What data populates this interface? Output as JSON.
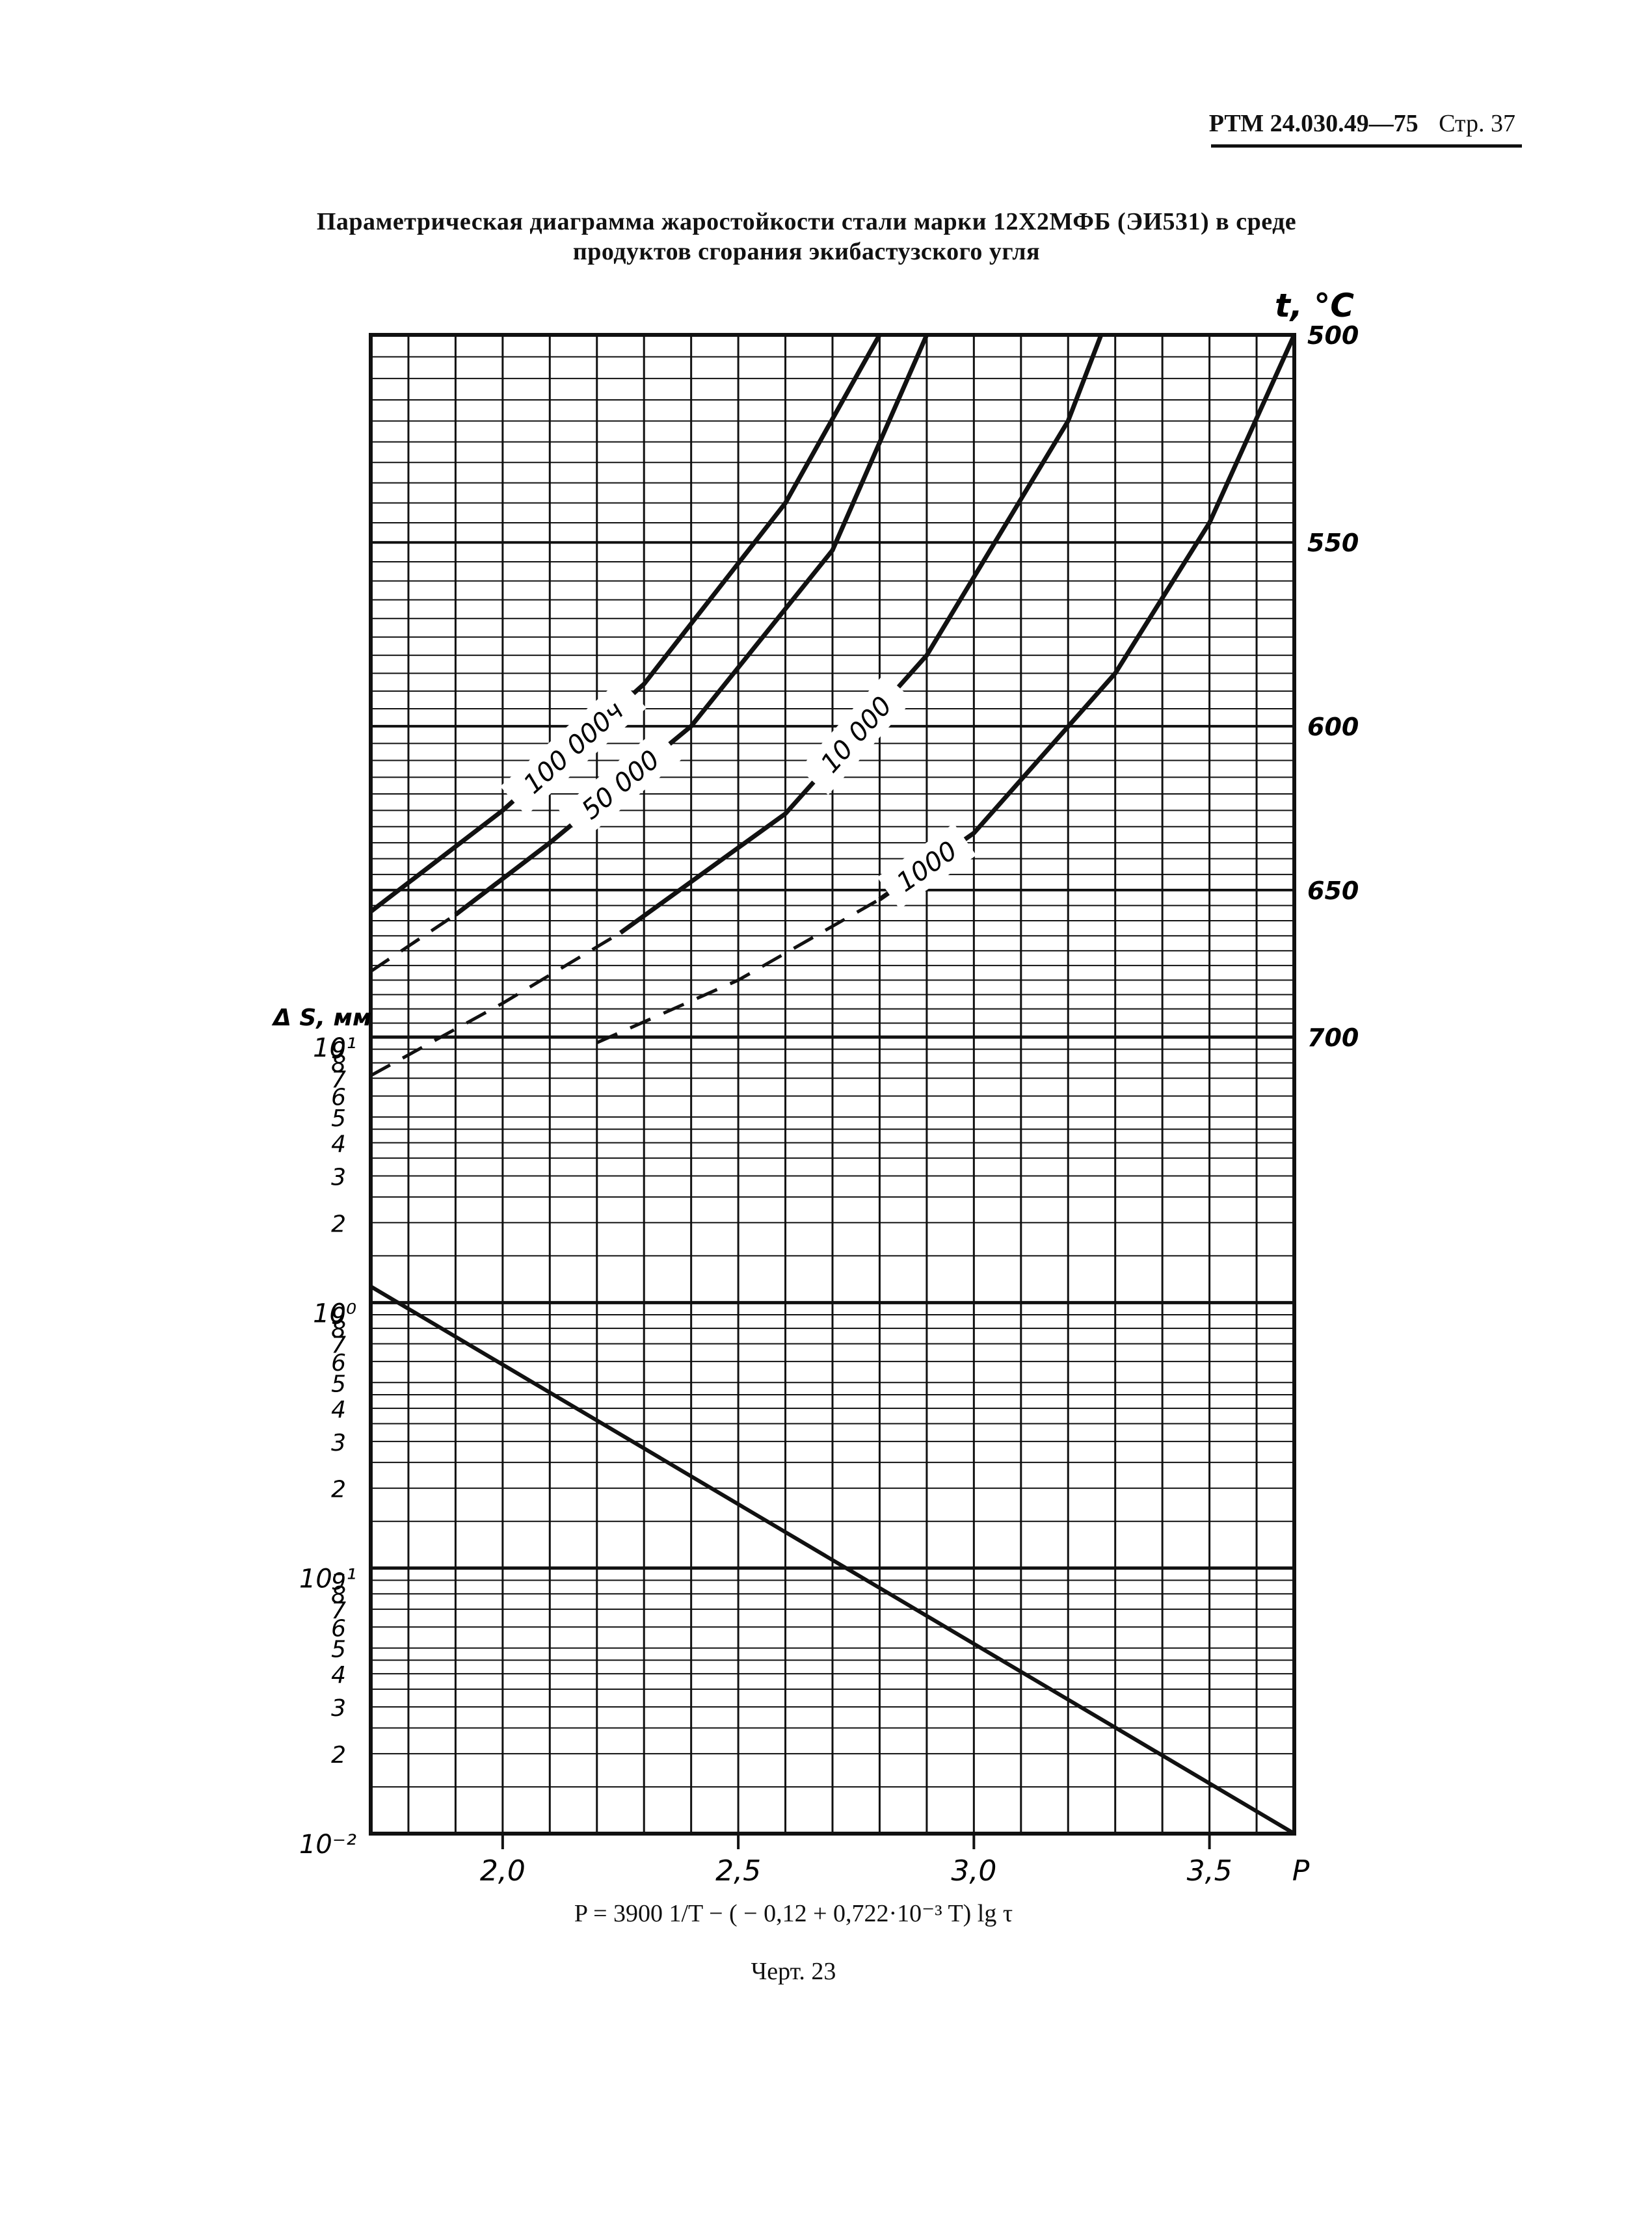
{
  "page_header": {
    "code": "РТМ 24.030.49—75",
    "page": "Стр. 37"
  },
  "title": "Параметрическая диаграмма жаростойкости стали марки 12Х2МФБ (ЭИ531) в среде продуктов сгорания экибастузского угля",
  "formula": "P = 3900 1/T − ( − 0,12 + 0,722·10⁻³ T) lg τ",
  "caption": "Черт. 23",
  "chart_data": {
    "type": "line",
    "x_axis": {
      "label": "P",
      "range": [
        1.72,
        3.68
      ],
      "ticks": [
        2.0,
        2.5,
        3.0,
        3.5
      ],
      "tick_labels": [
        "2,0",
        "2,5",
        "3,0",
        "3,5"
      ]
    },
    "right_axis": {
      "label": "t, °C",
      "ticks": [
        500,
        550,
        600,
        650,
        700
      ],
      "tick_labels": [
        "500",
        "550",
        "600",
        "650",
        "700"
      ],
      "inverse_kelvin": true
    },
    "left_axis": {
      "label": "Δ S, мм",
      "scale": "log",
      "range": [
        0.01,
        10
      ],
      "decade_labels": [
        "10¹",
        "10⁰",
        "10⁻¹",
        "10⁻²"
      ],
      "minor_labels": [
        "9",
        "8",
        "7",
        "6",
        "5",
        "4",
        "3",
        "2"
      ]
    },
    "series": [
      {
        "name": "100 000ч",
        "axis": "temperature",
        "dashed_until_x": 1.72,
        "x": [
          1.72,
          2.0,
          2.3,
          2.6,
          2.8
        ],
        "y": [
          657,
          625,
          588,
          540,
          500
        ]
      },
      {
        "name": "50 000",
        "axis": "temperature",
        "dashed_until_x": 1.9,
        "x": [
          1.72,
          1.9,
          2.1,
          2.4,
          2.7,
          2.9
        ],
        "y": [
          677,
          658,
          635,
          600,
          552,
          500
        ]
      },
      {
        "name": "10 000",
        "axis": "temperature",
        "dashed_until_x": 2.25,
        "x": [
          1.72,
          2.0,
          2.25,
          2.6,
          2.9,
          3.2,
          3.27
        ],
        "y": [
          714,
          688,
          664,
          626,
          580,
          520,
          500
        ]
      },
      {
        "name": "1000",
        "axis": "temperature",
        "dashed_until_x": 2.8,
        "x": [
          2.2,
          2.5,
          2.8,
          3.0,
          3.3,
          3.5,
          3.68
        ],
        "y": [
          702,
          680,
          653,
          632,
          585,
          545,
          500
        ]
      },
      {
        "name": "",
        "axis": "thickness",
        "x": [
          1.72,
          3.68
        ],
        "y": [
          1.15,
          0.01
        ]
      }
    ]
  }
}
